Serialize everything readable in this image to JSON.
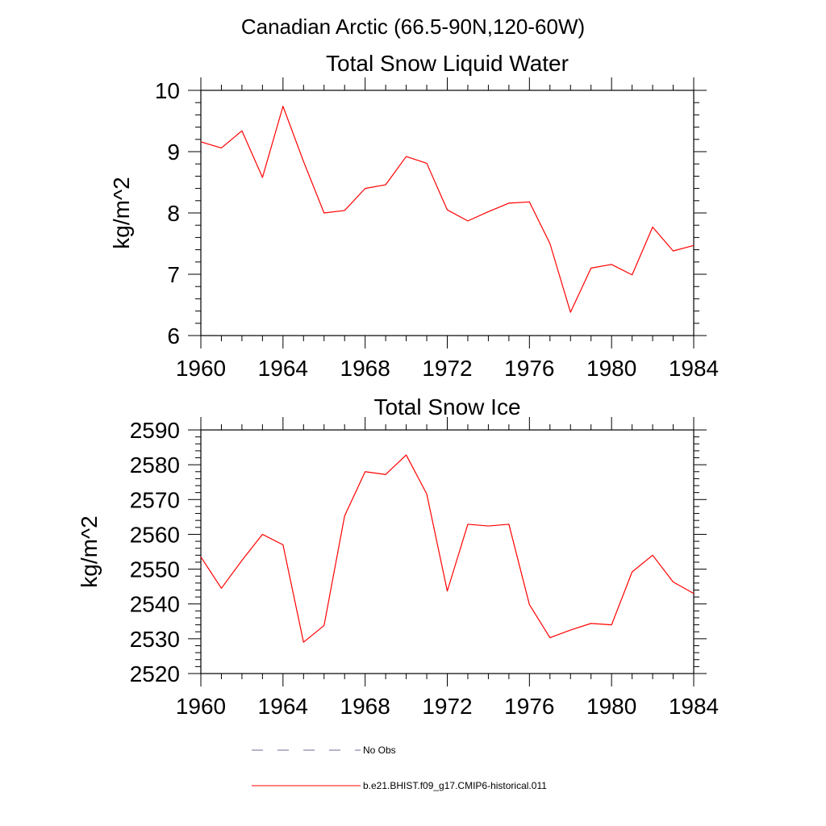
{
  "figure_title": "Canadian Arctic (66.5-90N,120-60W)",
  "legend": {
    "items": [
      {
        "label": "No Obs",
        "color": "#6b6b9a",
        "style": "dashed"
      },
      {
        "label": "b.e21.BHIST.f09_g17.CMIP6-historical.011",
        "color": "#ff0000",
        "style": "solid"
      }
    ]
  },
  "chart_data": [
    {
      "type": "line",
      "title": "Total Snow Liquid Water",
      "ylabel": "kg/m^2",
      "xlabel": "",
      "xlim": [
        1960,
        1984
      ],
      "ylim": [
        6,
        10
      ],
      "xticks": [
        "1960",
        "1964",
        "1968",
        "1972",
        "1976",
        "1980",
        "1984"
      ],
      "yticks": [
        "6",
        "7",
        "8",
        "9",
        "10"
      ],
      "series": [
        {
          "color": "#ff0000",
          "x": [
            1960,
            1961,
            1962,
            1963,
            1964,
            1965,
            1966,
            1967,
            1968,
            1969,
            1970,
            1971,
            1972,
            1973,
            1974,
            1975,
            1976,
            1977,
            1978,
            1979,
            1980,
            1981,
            1982,
            1983,
            1984
          ],
          "y": [
            9.16,
            9.06,
            9.34,
            8.58,
            9.74,
            8.84,
            8.0,
            8.04,
            8.4,
            8.46,
            8.92,
            8.81,
            8.05,
            7.87,
            8.02,
            8.16,
            8.18,
            7.5,
            6.38,
            7.1,
            7.16,
            6.99,
            7.77,
            7.38,
            7.47
          ]
        }
      ]
    },
    {
      "type": "line",
      "title": "Total Snow Ice",
      "ylabel": "kg/m^2",
      "xlabel": "",
      "xlim": [
        1960,
        1984
      ],
      "ylim": [
        2520,
        2590
      ],
      "xticks": [
        "1960",
        "1964",
        "1968",
        "1972",
        "1976",
        "1980",
        "1984"
      ],
      "yticks": [
        "2520",
        "2530",
        "2540",
        "2550",
        "2560",
        "2570",
        "2580",
        "2590"
      ],
      "series": [
        {
          "color": "#ff0000",
          "x": [
            1960,
            1961,
            1962,
            1963,
            1964,
            1965,
            1966,
            1967,
            1968,
            1969,
            1970,
            1971,
            1972,
            1973,
            1974,
            1975,
            1976,
            1977,
            1978,
            1979,
            1980,
            1981,
            1982,
            1983,
            1984
          ],
          "y": [
            2553.5,
            2544.5,
            2552.5,
            2560.0,
            2557.0,
            2529.0,
            2533.8,
            2565.3,
            2578.0,
            2577.2,
            2582.8,
            2571.6,
            2543.7,
            2562.9,
            2562.4,
            2562.9,
            2539.8,
            2530.3,
            2532.5,
            2534.4,
            2534.0,
            2549.2,
            2554.0,
            2546.3,
            2543.0
          ]
        }
      ]
    }
  ]
}
